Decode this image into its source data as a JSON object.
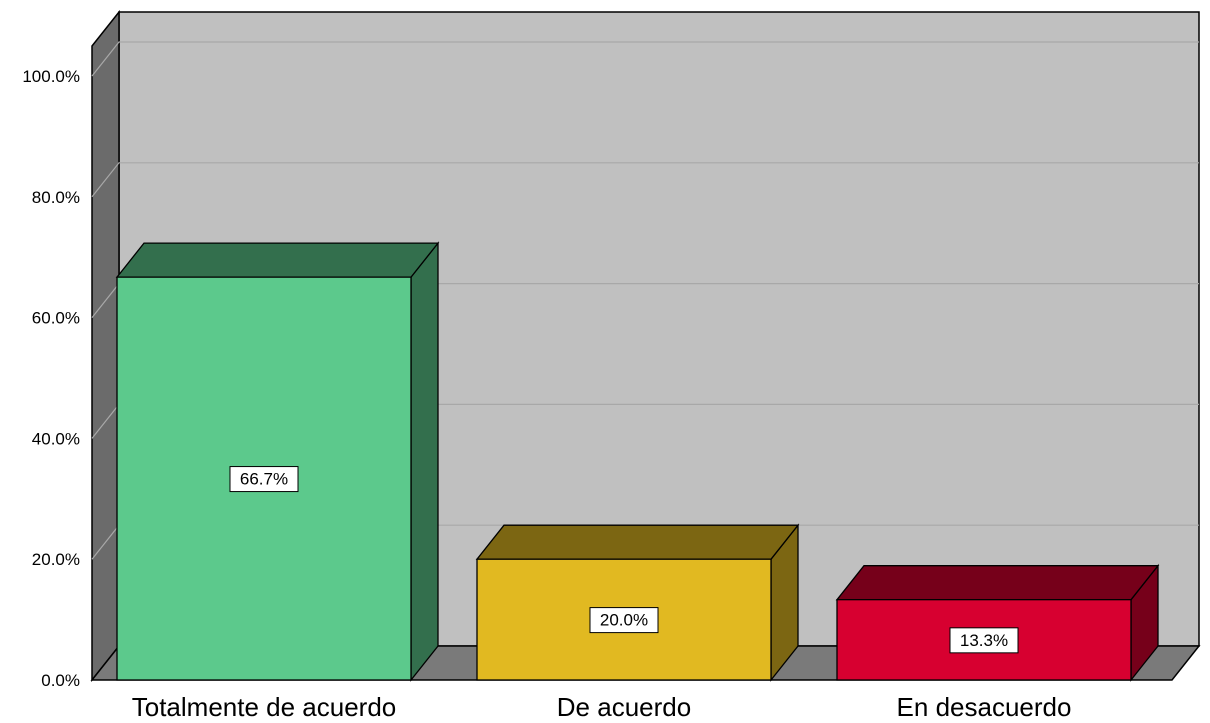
{
  "chart_data": {
    "type": "bar",
    "style": "3d",
    "categories": [
      "Totalmente de acuerdo",
      "De acuerdo",
      "En desacuerdo"
    ],
    "values": [
      66.7,
      20.0,
      13.3
    ],
    "data_labels": [
      "66.7%",
      "20.0%",
      "13.3%"
    ],
    "colors": [
      "#5cc98c",
      "#e1b921",
      "#d70030"
    ],
    "ylim": [
      0,
      100
    ],
    "y_ticks": [
      "0.0%",
      "20.0%",
      "40.0%",
      "60.0%",
      "80.0%",
      "100.0%"
    ],
    "y_tick_values": [
      0,
      20,
      40,
      60,
      80,
      100
    ],
    "grid": true,
    "background_color": "#c0c0c0",
    "title": "",
    "xlabel": "",
    "ylabel": ""
  }
}
